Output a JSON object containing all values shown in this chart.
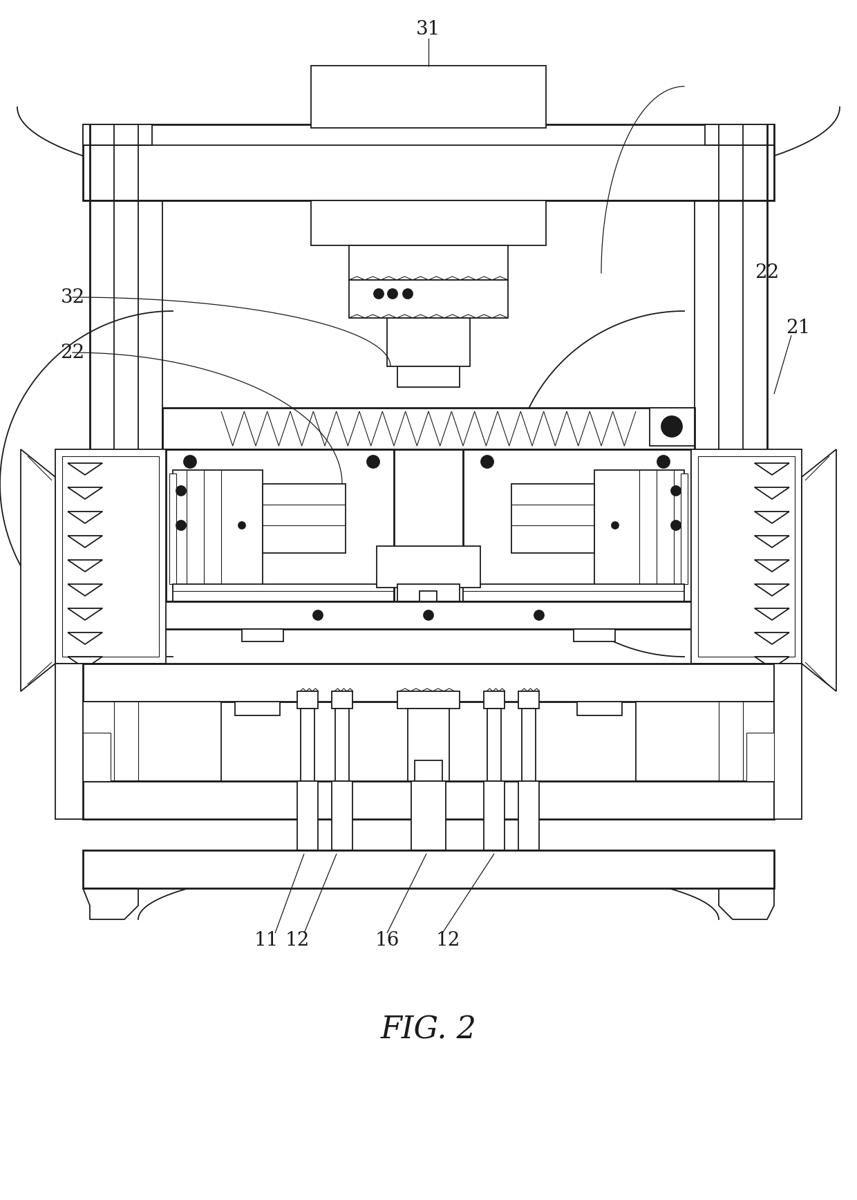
{
  "title": "FIG. 2",
  "title_fontsize": 32,
  "bg_color": "#ffffff",
  "line_color": "#1a1a1a",
  "lw": 1.3,
  "lw_thick": 2.0,
  "lw_thin": 0.8
}
